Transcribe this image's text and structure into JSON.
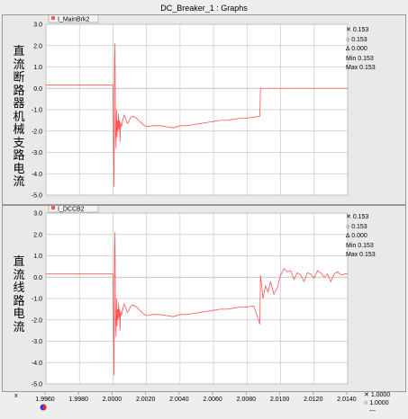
{
  "window": {
    "title": "DC_Breaker_1 : Graphs"
  },
  "xaxis": {
    "label": "x",
    "min": 1.996,
    "max": 2.014,
    "ticks": [
      1.996,
      1.998,
      2.0,
      2.002,
      2.004,
      2.006,
      2.008,
      2.01,
      2.012,
      2.014
    ],
    "tick_labels": [
      "1.9960",
      "1.9980",
      "2.0000",
      "2.0020",
      "2.0040",
      "2.0060",
      "2.0080",
      "2.0100",
      "2.0120",
      "2.0140"
    ],
    "cursor": {
      "x_label": "1.0000",
      "o_label": "1.0000",
      "dash_label": "---"
    }
  },
  "chart_data": [
    {
      "type": "line",
      "legend": "I_MainBrk2",
      "side_label": "直流断路器机械支路电流",
      "ylim": [
        -5.0,
        3.0
      ],
      "yticks": [
        3.0,
        2.0,
        1.0,
        0.0,
        -1.0,
        -2.0,
        -3.0,
        -4.0,
        -5.0
      ],
      "ytick_labels": [
        "3.0",
        "2.0",
        "1.0",
        "0.0",
        "-1.0",
        "-2.0",
        "-3.0",
        "-4.0",
        "-5.0"
      ],
      "readout": {
        "x": "0.153",
        "o": "0.153",
        "delta": "0.000",
        "min": "0.153",
        "max": "0.153"
      },
      "color": "#ff5555",
      "series": [
        {
          "x": [
            1.996,
            2.0,
            2.00003,
            2.00006,
            2.00009,
            2.00012,
            2.00015,
            2.00018,
            2.00021,
            2.00024,
            2.00027,
            2.0003,
            2.00033,
            2.00036,
            2.00039,
            2.00042,
            2.00045,
            2.0005,
            2.00058,
            2.00066,
            2.00075,
            2.00085,
            2.00095,
            2.00105,
            2.0012,
            2.0014,
            2.0016,
            2.0018,
            2.002,
            2.0024,
            2.0028,
            2.0032,
            2.0036,
            2.004,
            2.0044,
            2.0048,
            2.0052,
            2.0056,
            2.006,
            2.0064,
            2.0068,
            2.0072,
            2.0076,
            2.008,
            2.0084,
            2.00876,
            2.0088,
            2.009,
            2.01,
            2.012,
            2.014
          ],
          "y": [
            0.15,
            0.15,
            -2.0,
            -4.6,
            1.2,
            2.1,
            -1.9,
            -2.8,
            -1.0,
            -2.3,
            -1.5,
            -2.0,
            -1.2,
            -1.9,
            -1.5,
            -2.5,
            -1.6,
            -1.8,
            -1.5,
            -1.25,
            -1.4,
            -1.65,
            -1.55,
            -1.35,
            -1.3,
            -1.4,
            -1.55,
            -1.7,
            -1.8,
            -1.75,
            -1.75,
            -1.8,
            -1.85,
            -1.75,
            -1.75,
            -1.7,
            -1.65,
            -1.6,
            -1.55,
            -1.5,
            -1.5,
            -1.45,
            -1.4,
            -1.4,
            -1.35,
            -1.3,
            0.0,
            0.0,
            0.0,
            0.0,
            0.0
          ]
        }
      ]
    },
    {
      "type": "line",
      "legend": "I_DCCB2",
      "side_label": "直流线路电流",
      "ylim": [
        -5.0,
        3.0
      ],
      "yticks": [
        3.0,
        2.0,
        1.0,
        0.0,
        -1.0,
        -2.0,
        -3.0,
        -4.0,
        -5.0
      ],
      "ytick_labels": [
        "3.0",
        "2.0",
        "1.0",
        "0.0",
        "-1.0",
        "-2.0",
        "-3.0",
        "-4.0",
        "-5.0"
      ],
      "readout": {
        "x": "0.153",
        "o": "0.153",
        "delta": "0.000",
        "min": "0.153",
        "max": "0.153"
      },
      "color": "#ff5555",
      "series": [
        {
          "x": [
            1.996,
            2.0,
            2.00003,
            2.00006,
            2.00009,
            2.00012,
            2.00015,
            2.00018,
            2.00021,
            2.00024,
            2.00027,
            2.0003,
            2.00033,
            2.00036,
            2.00039,
            2.00042,
            2.00045,
            2.0005,
            2.00058,
            2.00066,
            2.00075,
            2.00085,
            2.00095,
            2.00105,
            2.0012,
            2.0014,
            2.0016,
            2.0018,
            2.002,
            2.0024,
            2.0028,
            2.0032,
            2.0036,
            2.004,
            2.0044,
            2.0048,
            2.0052,
            2.0056,
            2.006,
            2.0064,
            2.0068,
            2.0072,
            2.0076,
            2.008,
            2.0084,
            2.00876,
            2.0088,
            2.00895,
            2.0091,
            2.00925,
            2.0094,
            2.0096,
            2.0098,
            2.01,
            2.0102,
            2.0104,
            2.0106,
            2.0108,
            2.011,
            2.0112,
            2.0114,
            2.0116,
            2.0118,
            2.012,
            2.0122,
            2.0124,
            2.0126,
            2.0128,
            2.013,
            2.0132,
            2.0134,
            2.0136,
            2.0138,
            2.014
          ],
          "y": [
            0.15,
            0.15,
            -2.0,
            -4.6,
            1.2,
            2.1,
            -1.9,
            -2.8,
            -1.0,
            -2.3,
            -1.5,
            -2.0,
            -1.2,
            -1.9,
            -1.5,
            -2.5,
            -1.6,
            -1.8,
            -1.5,
            -1.25,
            -1.4,
            -1.65,
            -1.55,
            -1.35,
            -1.3,
            -1.4,
            -1.55,
            -1.7,
            -1.8,
            -1.75,
            -1.75,
            -1.8,
            -1.85,
            -1.75,
            -1.75,
            -1.7,
            -1.65,
            -1.6,
            -1.55,
            -1.5,
            -1.5,
            -1.45,
            -1.4,
            -1.4,
            -1.35,
            -2.2,
            0.1,
            -1.0,
            -0.4,
            -0.7,
            -0.2,
            -0.8,
            -0.5,
            0.1,
            0.4,
            0.25,
            0.3,
            -0.1,
            0.2,
            0.1,
            -0.2,
            0.2,
            0.15,
            -0.05,
            0.3,
            0.2,
            0.0,
            0.15,
            -0.2,
            0.15,
            0.25,
            0.1,
            0.15,
            0.15
          ]
        }
      ]
    }
  ]
}
